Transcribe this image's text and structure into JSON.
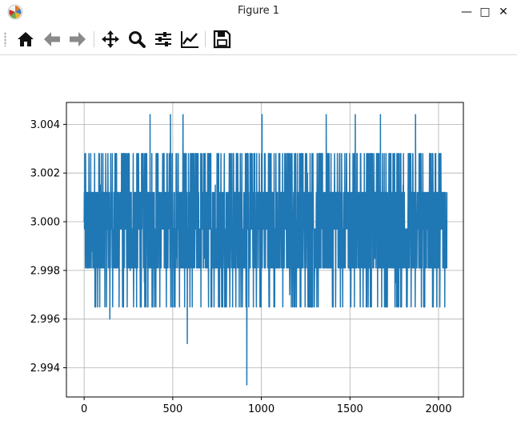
{
  "window": {
    "title": "Figure 1"
  },
  "window_controls": {
    "minimize": "—",
    "maximize": "□",
    "close": "✕"
  },
  "toolbar": {
    "items": [
      {
        "name": "home-button",
        "icon": "home-icon"
      },
      {
        "name": "back-button",
        "icon": "arrow-left-icon"
      },
      {
        "name": "forward-button",
        "icon": "arrow-right-icon"
      },
      {
        "name": "pan-button",
        "icon": "move-icon"
      },
      {
        "name": "zoom-button",
        "icon": "magnifier-icon"
      },
      {
        "name": "subplots-button",
        "icon": "sliders-icon"
      },
      {
        "name": "edit-axis-button",
        "icon": "chart-line-icon"
      },
      {
        "name": "save-button",
        "icon": "floppy-disk-icon"
      }
    ]
  },
  "chart_data": {
    "type": "line",
    "title": "",
    "xlabel": "",
    "ylabel": "",
    "xlim": [
      -100,
      2140
    ],
    "ylim": [
      2.9928,
      3.0049
    ],
    "xticks": [
      0,
      500,
      1000,
      1500,
      2000
    ],
    "xtick_labels": [
      "0",
      "500",
      "1000",
      "1500",
      "2000"
    ],
    "yticks": [
      2.994,
      2.996,
      2.998,
      3.0,
      3.002,
      3.004
    ],
    "ytick_labels": [
      "2.994",
      "2.996",
      "2.998",
      "3.000",
      "3.002",
      "3.004"
    ],
    "grid": true,
    "line_color": "#1f77b4",
    "n_points": 2048,
    "levels": [
      2.9933,
      2.9949,
      2.9965,
      2.9981,
      2.9997,
      3.0012,
      3.0028,
      3.0044
    ],
    "series": [
      {
        "x": [
          0,
          45,
          90,
          145,
          200,
          260,
          300,
          340,
          372,
          400,
          440,
          487,
          520,
          558,
          582,
          620,
          680,
          740,
          800,
          860,
          880,
          918,
          950,
          1004,
          1050,
          1100,
          1160,
          1200,
          1260,
          1300,
          1366,
          1400,
          1440,
          1500,
          1530,
          1590,
          1640,
          1672,
          1700,
          1760,
          1800,
          1870,
          1900,
          1960,
          2000,
          2047
        ],
        "y": [
          3.0,
          2.9988,
          3.0015,
          2.996,
          3.0002,
          2.998,
          3.002,
          2.9975,
          3.0044,
          2.999,
          3.001,
          3.0044,
          2.9985,
          3.0044,
          2.995,
          3.0,
          2.9985,
          3.0015,
          2.997,
          3.002,
          2.999,
          2.9933,
          3.0005,
          3.0044,
          2.9985,
          3.0015,
          2.997,
          3.0,
          3.002,
          2.9975,
          3.0044,
          2.999,
          3.001,
          2.998,
          3.0044,
          3.0,
          2.9985,
          3.0044,
          3.001,
          2.9975,
          3.0015,
          3.0044,
          2.999,
          3.0005,
          2.9985,
          3.0012
        ]
      }
    ]
  }
}
